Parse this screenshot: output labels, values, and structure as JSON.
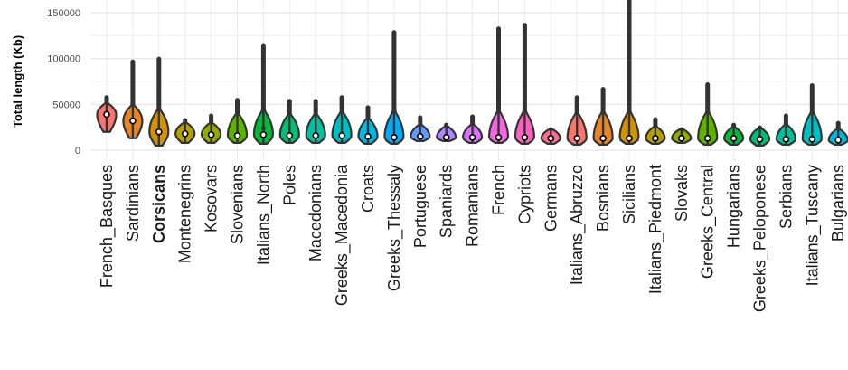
{
  "chart_data": {
    "type": "violin",
    "ylabel": "Total length (Kb)",
    "xlabel": "",
    "ylim": [
      -10000,
      165000
    ],
    "yticks": [
      0,
      50000,
      100000,
      150000
    ],
    "ytick_labels": [
      "0",
      "50000",
      "100000",
      "150000"
    ],
    "grid": true,
    "highlight_category": "Corsicans",
    "groups": [
      {
        "label": "French_Basques",
        "color": "#F8766D",
        "min": 20000,
        "max": 58000,
        "median": 39000,
        "outliers": []
      },
      {
        "label": "Sardinians",
        "color": "#E88526",
        "min": 13000,
        "max": 97000,
        "median": 32000,
        "outliers": []
      },
      {
        "label": "Corsicans",
        "color": "#D39200",
        "min": 5000,
        "max": 100000,
        "median": 20000,
        "outliers": []
      },
      {
        "label": "Montenegrins",
        "color": "#B79F00",
        "min": 8000,
        "max": 33000,
        "median": 18000,
        "outliers": []
      },
      {
        "label": "Kosovars",
        "color": "#93AA00",
        "min": 8000,
        "max": 38000,
        "median": 17000,
        "outliers": []
      },
      {
        "label": "Slovenians",
        "color": "#5EB300",
        "min": 8000,
        "max": 55000,
        "median": 16000,
        "outliers": []
      },
      {
        "label": "Italians_North",
        "color": "#00BA38",
        "min": 7000,
        "max": 114000,
        "median": 17000,
        "outliers": [
          24000
        ]
      },
      {
        "label": "Poles",
        "color": "#00BF74",
        "min": 8000,
        "max": 54000,
        "median": 16000,
        "outliers": []
      },
      {
        "label": "Macedonians",
        "color": "#00C19F",
        "min": 8000,
        "max": 54000,
        "median": 16000,
        "outliers": []
      },
      {
        "label": "Greeks_Macedonia",
        "color": "#00BFC4",
        "min": 8000,
        "max": 58000,
        "median": 16000,
        "outliers": []
      },
      {
        "label": "Croats",
        "color": "#00B9E3",
        "min": 7000,
        "max": 47000,
        "median": 15000,
        "outliers": []
      },
      {
        "label": "Greeks_Thessaly",
        "color": "#00ADFA",
        "min": 7000,
        "max": 129000,
        "median": 14000,
        "outliers": [
          44000
        ]
      },
      {
        "label": "Portuguese",
        "color": "#619CFF",
        "min": 10000,
        "max": 36000,
        "median": 15000,
        "outliers": [
          28000
        ]
      },
      {
        "label": "Spaniards",
        "color": "#AE87FF",
        "min": 10000,
        "max": 28000,
        "median": 14000,
        "outliers": []
      },
      {
        "label": "Romanians",
        "color": "#DB72FB",
        "min": 8000,
        "max": 37000,
        "median": 14000,
        "outliers": []
      },
      {
        "label": "French",
        "color": "#F564E3",
        "min": 8000,
        "max": 133000,
        "median": 14000,
        "outliers": [
          122000
        ]
      },
      {
        "label": "Cypriots",
        "color": "#FF61C3",
        "min": 7000,
        "max": 137000,
        "median": 14000,
        "outliers": []
      },
      {
        "label": "Germans",
        "color": "#FF6C91",
        "min": 7000,
        "max": 23000,
        "median": 13000,
        "outliers": []
      },
      {
        "label": "Italians_Abruzzo",
        "color": "#F8766D",
        "min": 6000,
        "max": 58000,
        "median": 13000,
        "outliers": []
      },
      {
        "label": "Bosnians",
        "color": "#E88526",
        "min": 6000,
        "max": 67000,
        "median": 13000,
        "outliers": []
      },
      {
        "label": "Sicilians",
        "color": "#D39200",
        "min": 7000,
        "max": 165000,
        "median": 13000,
        "outliers": [
          45000
        ]
      },
      {
        "label": "Italians_Piedmont",
        "color": "#B79F00",
        "min": 7000,
        "max": 34000,
        "median": 13000,
        "outliers": []
      },
      {
        "label": "Slovaks",
        "color": "#93AA00",
        "min": 8000,
        "max": 23000,
        "median": 13000,
        "outliers": []
      },
      {
        "label": "Greeks_Central",
        "color": "#5EB300",
        "min": 6000,
        "max": 72000,
        "median": 13000,
        "outliers": [
          50000
        ]
      },
      {
        "label": "Hungarians",
        "color": "#00BA38",
        "min": 6000,
        "max": 28000,
        "median": 13000,
        "outliers": []
      },
      {
        "label": "Greeks_Peloponese",
        "color": "#00BF74",
        "min": 5000,
        "max": 25000,
        "median": 12000,
        "outliers": []
      },
      {
        "label": "Serbians",
        "color": "#00C19F",
        "min": 6000,
        "max": 38000,
        "median": 12000,
        "outliers": []
      },
      {
        "label": "Italians_Tuscany",
        "color": "#00BFC4",
        "min": 6000,
        "max": 71000,
        "median": 12000,
        "outliers": []
      },
      {
        "label": "Bulgarians",
        "color": "#00B9E3",
        "min": 6000,
        "max": 30000,
        "median": 11000,
        "outliers": []
      }
    ]
  }
}
